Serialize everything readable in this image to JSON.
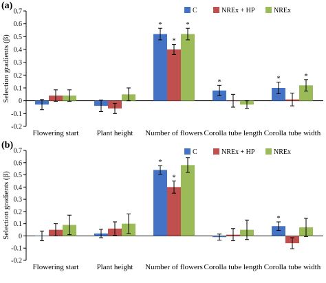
{
  "colors": {
    "C": "#4472c4",
    "NREx + HP": "#c0504d",
    "NREx": "#9bbb59"
  },
  "chart_data": [
    {
      "panel_label": "(a)",
      "type": "bar",
      "ylabel": "Selection gradients (β)",
      "ylim": [
        -0.2,
        0.7
      ],
      "yticks": [
        "-0.2",
        "-0.1",
        "0",
        "0.1",
        "0.2",
        "0.3",
        "0.4",
        "0.5",
        "0.6",
        "0.7"
      ],
      "grid": false,
      "legend_position": "top-right",
      "categories": [
        "Flowering start",
        "Plant height",
        "Number of flowers",
        "Corolla tube length",
        "Corolla tube width"
      ],
      "series": [
        {
          "name": "C",
          "values": [
            -0.03,
            -0.04,
            0.52,
            0.08,
            0.1
          ],
          "errors": [
            0.04,
            0.045,
            0.045,
            0.04,
            0.045
          ]
        },
        {
          "name": "NREx + HP",
          "values": [
            0.04,
            -0.06,
            0.4,
            0.0,
            0.01
          ],
          "errors": [
            0.045,
            0.04,
            0.04,
            0.05,
            0.05
          ]
        },
        {
          "name": "NREx",
          "values": [
            0.04,
            0.05,
            0.52,
            -0.03,
            0.12
          ],
          "errors": [
            0.045,
            0.05,
            0.045,
            0.03,
            0.045
          ]
        }
      ],
      "significance": [
        {
          "series": "C",
          "category": "Number of flowers"
        },
        {
          "series": "NREx + HP",
          "category": "Number of flowers"
        },
        {
          "series": "NREx",
          "category": "Number of flowers"
        },
        {
          "series": "C",
          "category": "Corolla tube length"
        },
        {
          "series": "C",
          "category": "Corolla tube width"
        },
        {
          "series": "NREx",
          "category": "Corolla tube width"
        }
      ]
    },
    {
      "panel_label": "(b)",
      "type": "bar",
      "ylabel": "Selection gradients (β)",
      "ylim": [
        -0.2,
        0.7
      ],
      "yticks": [
        "-0.2",
        "-0.1",
        "0",
        "0.1",
        "0.2",
        "0.3",
        "0.4",
        "0.5",
        "0.6",
        "0.7"
      ],
      "grid": false,
      "legend_position": "top-right",
      "categories": [
        "Flowering start",
        "Plant height",
        "Number of flowers",
        "Corolla tube length",
        "Corolla tube width"
      ],
      "series": [
        {
          "name": "C",
          "values": [
            0.0,
            0.02,
            0.54,
            -0.01,
            0.08
          ],
          "errors": [
            0.04,
            0.035,
            0.035,
            0.025,
            0.035
          ]
        },
        {
          "name": "NREx + HP",
          "values": [
            0.05,
            0.06,
            0.4,
            0.01,
            -0.06
          ],
          "errors": [
            0.05,
            0.055,
            0.05,
            0.05,
            0.045
          ]
        },
        {
          "name": "NREx",
          "values": [
            0.09,
            0.1,
            0.58,
            0.05,
            0.07
          ],
          "errors": [
            0.08,
            0.08,
            0.06,
            0.08,
            0.075
          ]
        }
      ],
      "significance": [
        {
          "series": "C",
          "category": "Number of flowers"
        },
        {
          "series": "NREx + HP",
          "category": "Number of flowers"
        },
        {
          "series": "NREx",
          "category": "Number of flowers"
        },
        {
          "series": "C",
          "category": "Corolla tube width"
        }
      ]
    }
  ]
}
